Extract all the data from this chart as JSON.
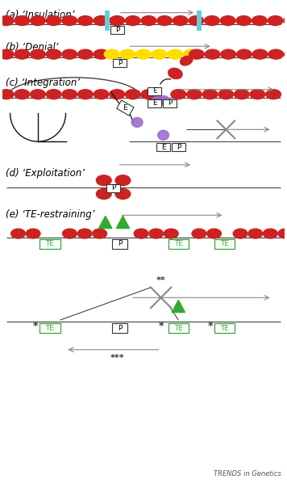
{
  "bg_color": "#ffffff",
  "nucleosome_color": "#cc2222",
  "yellow_color": "#ffdd00",
  "purple_color": "#9966cc",
  "cyan_color": "#66ccdd",
  "green_color": "#33aa33",
  "arrow_color": "#888888",
  "line_color": "#444444",
  "box_face": "#ffffff",
  "box_edge": "#333333",
  "sections": [
    "(a) ‘Insulation’",
    "(b) ‘Denial’",
    "(c) ‘Integration’",
    "(d) ‘Exploitation’",
    "(e) ‘TE-restraining’"
  ],
  "label_fontsize": 8.5,
  "trends_text": "TRENDS in Genetics"
}
